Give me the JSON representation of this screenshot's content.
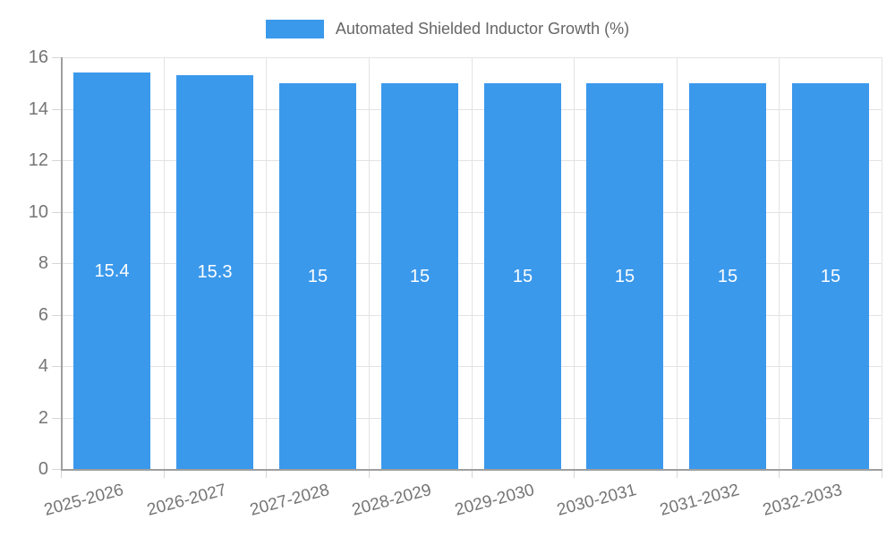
{
  "chart_data": {
    "type": "bar",
    "title": "",
    "legend_label": "Automated Shielded Inductor Growth (%)",
    "legend_position": "top",
    "categories": [
      "2025-2026",
      "2026-2027",
      "2027-2028",
      "2028-2029",
      "2029-2030",
      "2030-2031",
      "2031-2032",
      "2032-2033"
    ],
    "values": [
      15.4,
      15.3,
      15,
      15,
      15,
      15,
      15,
      15
    ],
    "bar_labels": [
      "15.4",
      "15.3",
      "15",
      "15",
      "15",
      "15",
      "15",
      "15"
    ],
    "xlabel": "",
    "ylabel": "",
    "ylim": [
      0,
      16
    ],
    "yticks": [
      0,
      2,
      4,
      6,
      8,
      10,
      12,
      14,
      16
    ],
    "ytick_labels": [
      "0",
      "2",
      "4",
      "6",
      "8",
      "10",
      "12",
      "14",
      "16"
    ],
    "grid": "on",
    "x_label_rotation_deg": -15,
    "colors": {
      "bar": "#3b99ec",
      "grid": "#e3e3e3",
      "tick": "#d6d6d6",
      "axis": "#9f9f9f",
      "tick_text": "#757575",
      "legend_text": "#666666",
      "bar_label_text": "#ffffff",
      "background": "#ffffff"
    }
  }
}
